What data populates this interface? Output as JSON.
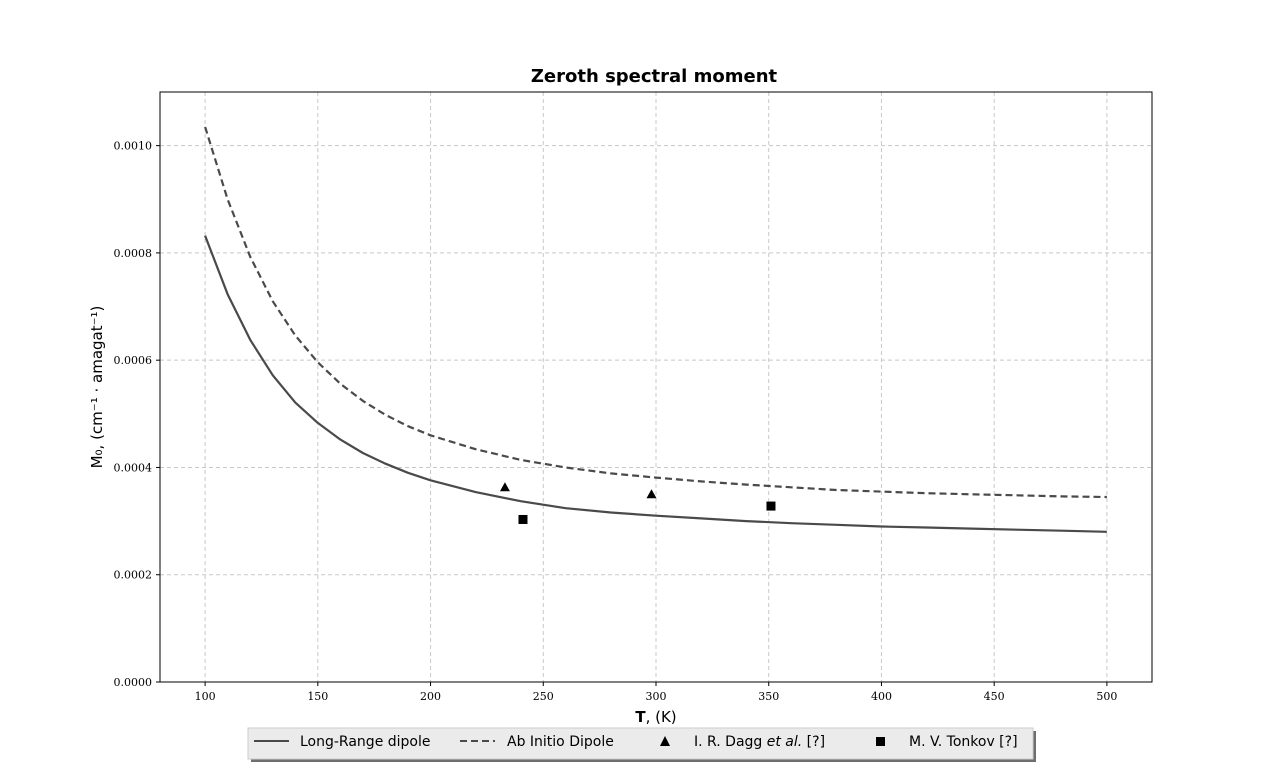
{
  "chart_data": {
    "type": "line",
    "title": "Zeroth spectral moment",
    "xlabel": {
      "bold": "T",
      "rest": ", (K)"
    },
    "ylabel": "M₀, (cm⁻¹ · amagat⁻¹)",
    "xlim": [
      80,
      520
    ],
    "ylim": [
      0.0,
      0.0011
    ],
    "xticks": [
      100,
      150,
      200,
      250,
      300,
      350,
      400,
      450,
      500
    ],
    "yticks": [
      0.0,
      0.0002,
      0.0004,
      0.0006,
      0.0008,
      0.001
    ],
    "ytick_labels": [
      "0.0000",
      "0.0002",
      "0.0004",
      "0.0006",
      "0.0008",
      "0.0010"
    ],
    "grid": true,
    "legend_position": "bottom-center",
    "series": [
      {
        "name": "Long-Range dipole",
        "kind": "line",
        "style": "solid",
        "color": "#4a4a4a",
        "x": [
          100,
          110,
          120,
          130,
          140,
          150,
          160,
          170,
          180,
          190,
          200,
          220,
          240,
          260,
          280,
          300,
          320,
          340,
          360,
          380,
          400,
          420,
          440,
          460,
          480,
          500
        ],
        "y": [
          0.000832,
          0.000723,
          0.000638,
          0.000572,
          0.000521,
          0.000483,
          0.000452,
          0.000427,
          0.000407,
          0.00039,
          0.000376,
          0.000354,
          0.000337,
          0.000324,
          0.000316,
          0.00031,
          0.000305,
          0.0003,
          0.000296,
          0.000293,
          0.00029,
          0.000288,
          0.000286,
          0.000284,
          0.000282,
          0.00028
        ]
      },
      {
        "name": "Ab Initio Dipole",
        "kind": "line",
        "style": "dashed",
        "color": "#4a4a4a",
        "x": [
          100,
          110,
          120,
          130,
          140,
          150,
          160,
          170,
          180,
          190,
          200,
          220,
          240,
          260,
          280,
          300,
          320,
          340,
          360,
          380,
          400,
          420,
          440,
          460,
          480,
          500
        ],
        "y": [
          0.001035,
          0.0009,
          0.000793,
          0.00071,
          0.000646,
          0.000596,
          0.000556,
          0.000524,
          0.000498,
          0.000477,
          0.00046,
          0.000434,
          0.000414,
          0.0004,
          0.000389,
          0.000381,
          0.000374,
          0.000368,
          0.000363,
          0.000358,
          0.000355,
          0.000352,
          0.00035,
          0.000348,
          0.000346,
          0.000345
        ]
      },
      {
        "name_parts": [
          "I. R. Dagg ",
          "et al.",
          " [?]"
        ],
        "kind": "scatter",
        "marker": "triangle",
        "color": "#000000",
        "x": [
          233,
          298
        ],
        "y": [
          0.000363,
          0.00035
        ]
      },
      {
        "name": "M. V. Tonkov [?]",
        "kind": "scatter",
        "marker": "square",
        "color": "#000000",
        "x": [
          241,
          351
        ],
        "y": [
          0.000303,
          0.000328
        ]
      }
    ]
  }
}
